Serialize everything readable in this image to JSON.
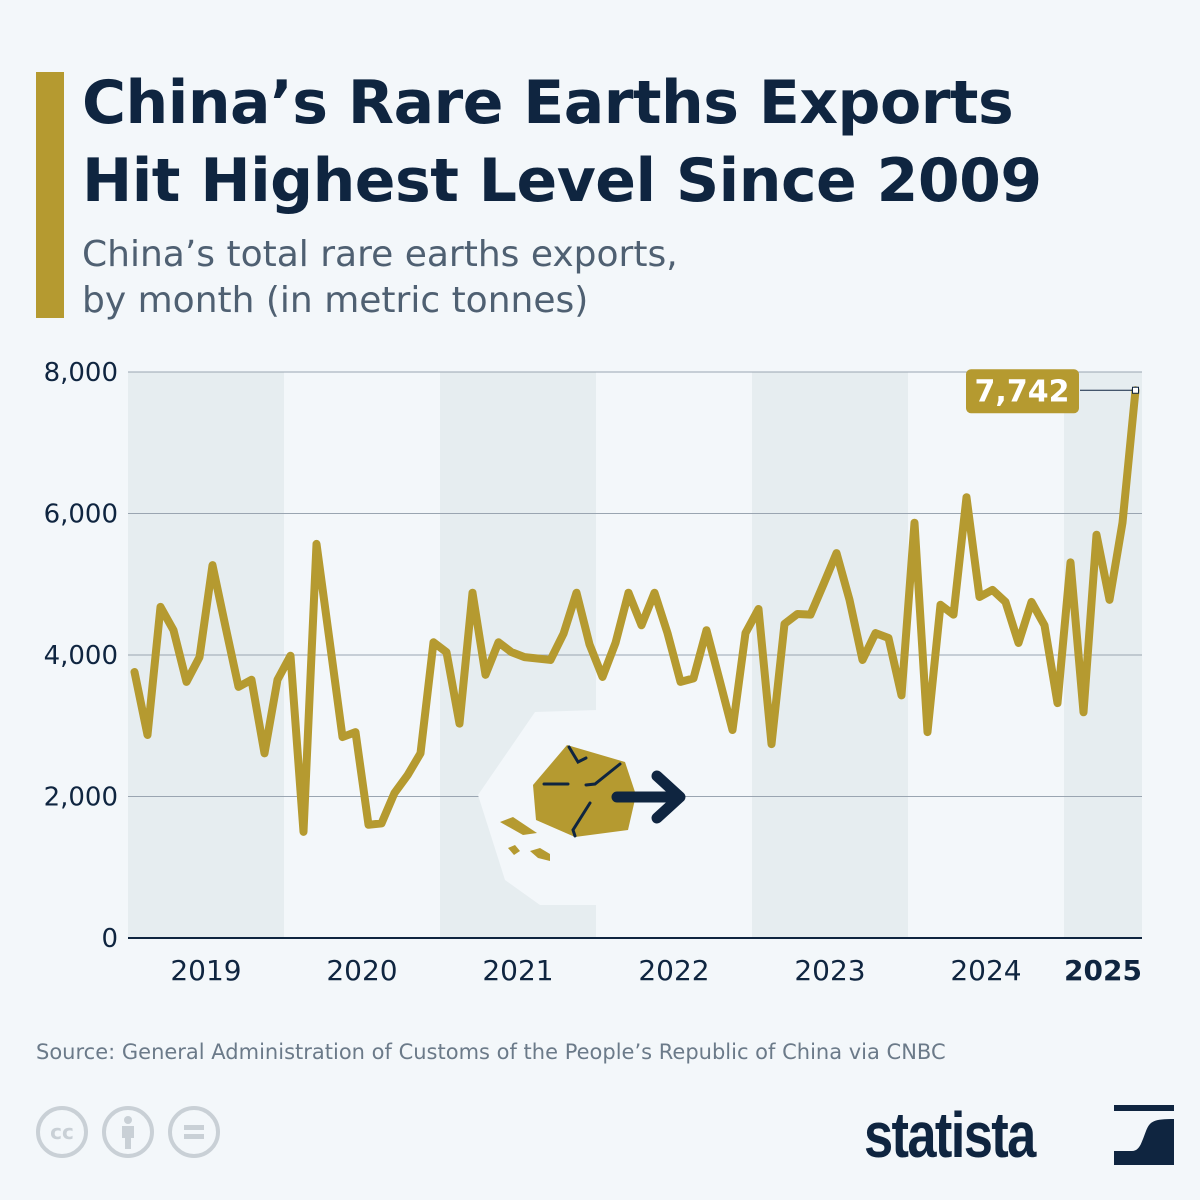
{
  "header": {
    "title_line1": "China’s Rare Earths Exports",
    "title_line2": "Hit Highest Level Since 2009",
    "subtitle_line1": "China’s total rare earths exports,",
    "subtitle_line2": "by month (in metric tonnes)"
  },
  "chart_data": {
    "type": "line",
    "title": "China’s Rare Earths Exports Hit Highest Level Since 2009",
    "subtitle": "China’s total rare earths exports, by month (in metric tonnes)",
    "x_start": "2019-01",
    "x_end": "2025-06",
    "x_tick_labels": [
      "2019",
      "2020",
      "2021",
      "2022",
      "2023",
      "2024",
      "2025"
    ],
    "y_tick_labels": [
      "0",
      "2,000",
      "4,000",
      "6,000",
      "8,000"
    ],
    "y_ticks": [
      0,
      2000,
      4000,
      6000,
      8000
    ],
    "ylim": [
      0,
      8000
    ],
    "grid": "horizontal",
    "alternating_year_bands": true,
    "line_color": "#b59a30",
    "highlight": {
      "label": "7,742",
      "value": 7742,
      "month": "2025-06"
    },
    "series": [
      {
        "values": [
          3760,
          2870,
          4680,
          4350,
          3620,
          3970,
          5270,
          4400,
          3550,
          3650,
          2610,
          3650,
          3990,
          1500,
          5570,
          4210,
          2840,
          2910,
          1600,
          1620,
          2050,
          2300,
          2610,
          4180,
          4040,
          3030,
          4880,
          3720,
          4180,
          4040,
          3970,
          3950,
          3930,
          4300,
          4880,
          4150,
          3690,
          4170,
          4880,
          4420,
          4880,
          4310,
          3620,
          3670,
          4350,
          3650,
          2940,
          4310,
          4650,
          2740,
          4440,
          4580,
          4570,
          5000,
          5440,
          4780,
          3930,
          4310,
          4240,
          3430,
          5870,
          2910,
          4710,
          4570,
          6230,
          4820,
          4920,
          4750,
          4170,
          4750,
          4420,
          3320,
          5310,
          3190,
          5700,
          4780,
          5870,
          7742
        ]
      }
    ]
  },
  "footer": {
    "source": "Source: General Administration of Customs of the People’s Republic of China via CNBC",
    "cc_icons": [
      "cc-icon",
      "by-icon",
      "nd-icon"
    ],
    "cc_text": "cc",
    "logo": "statista"
  },
  "colors": {
    "accent": "#b59a30",
    "navy": "#0f2540",
    "band": "#e6edf0",
    "background": "#f3f7fa"
  }
}
